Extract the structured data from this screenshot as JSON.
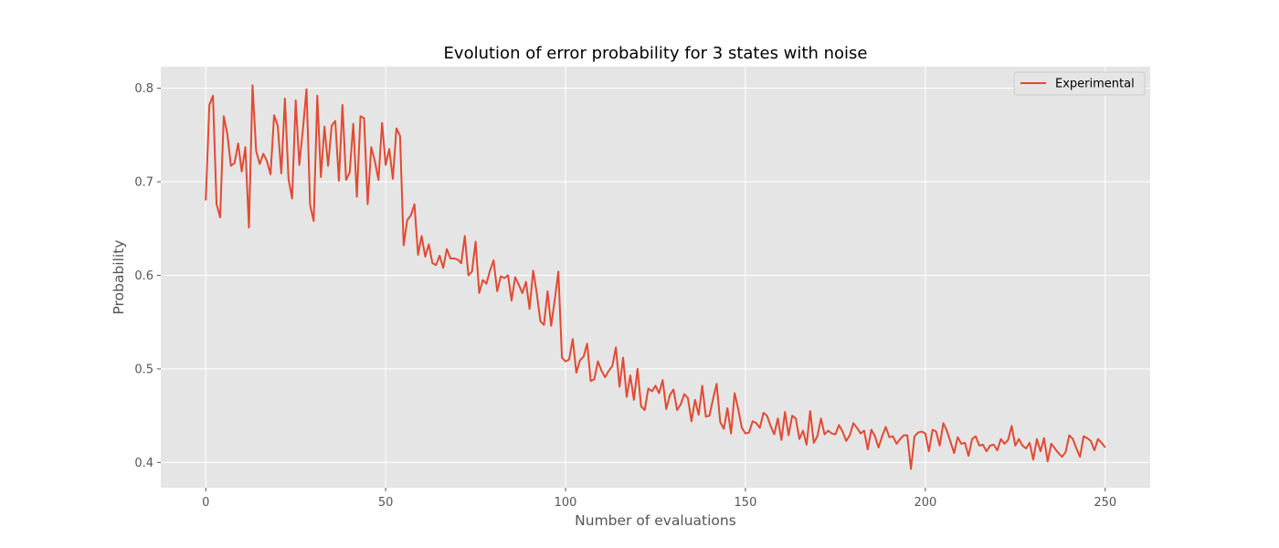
{
  "chart_data": {
    "type": "line",
    "title": "Evolution of error probability for 3 states with noise",
    "xlabel": "Number of evaluations",
    "ylabel": "Probability",
    "xlim": [
      -12.5,
      262.5
    ],
    "ylim": [
      0.373,
      0.823
    ],
    "x_ticks": [
      0,
      50,
      100,
      150,
      200,
      250
    ],
    "y_ticks": [
      0.4,
      0.5,
      0.6,
      0.7,
      0.8
    ],
    "x_tick_labels": [
      "0",
      "50",
      "100",
      "150",
      "200",
      "250"
    ],
    "y_tick_labels": [
      "0.4",
      "0.5",
      "0.6",
      "0.7",
      "0.8"
    ],
    "grid": true,
    "legend_position": "top-right",
    "colors": {
      "plot_background": "#e5e5e5",
      "grid": "#ffffff",
      "line": "#e24a33",
      "legend_border": "#cccccc"
    },
    "series": [
      {
        "name": "Experimental",
        "x_start": 0,
        "x_step": 1,
        "values": [
          0.68,
          0.782,
          0.792,
          0.676,
          0.662,
          0.77,
          0.751,
          0.717,
          0.72,
          0.741,
          0.711,
          0.737,
          0.651,
          0.803,
          0.733,
          0.719,
          0.73,
          0.722,
          0.708,
          0.771,
          0.76,
          0.709,
          0.789,
          0.703,
          0.682,
          0.787,
          0.718,
          0.756,
          0.799,
          0.675,
          0.658,
          0.792,
          0.705,
          0.759,
          0.717,
          0.76,
          0.765,
          0.701,
          0.782,
          0.702,
          0.71,
          0.762,
          0.684,
          0.77,
          0.768,
          0.676,
          0.737,
          0.722,
          0.702,
          0.763,
          0.718,
          0.735,
          0.703,
          0.757,
          0.749,
          0.632,
          0.659,
          0.664,
          0.676,
          0.622,
          0.642,
          0.62,
          0.633,
          0.613,
          0.611,
          0.621,
          0.608,
          0.628,
          0.618,
          0.618,
          0.617,
          0.613,
          0.642,
          0.6,
          0.604,
          0.636,
          0.581,
          0.595,
          0.591,
          0.605,
          0.616,
          0.583,
          0.599,
          0.597,
          0.6,
          0.573,
          0.598,
          0.59,
          0.581,
          0.593,
          0.564,
          0.605,
          0.581,
          0.551,
          0.547,
          0.583,
          0.546,
          0.574,
          0.604,
          0.512,
          0.508,
          0.51,
          0.532,
          0.496,
          0.509,
          0.513,
          0.527,
          0.487,
          0.489,
          0.508,
          0.498,
          0.491,
          0.498,
          0.503,
          0.523,
          0.481,
          0.512,
          0.47,
          0.493,
          0.467,
          0.5,
          0.46,
          0.456,
          0.479,
          0.476,
          0.482,
          0.474,
          0.488,
          0.457,
          0.472,
          0.478,
          0.456,
          0.462,
          0.473,
          0.469,
          0.444,
          0.467,
          0.451,
          0.482,
          0.449,
          0.45,
          0.468,
          0.484,
          0.443,
          0.436,
          0.458,
          0.431,
          0.474,
          0.457,
          0.437,
          0.431,
          0.432,
          0.444,
          0.442,
          0.437,
          0.453,
          0.45,
          0.439,
          0.43,
          0.447,
          0.424,
          0.454,
          0.429,
          0.45,
          0.447,
          0.425,
          0.434,
          0.419,
          0.455,
          0.421,
          0.428,
          0.447,
          0.43,
          0.434,
          0.431,
          0.43,
          0.44,
          0.433,
          0.423,
          0.429,
          0.442,
          0.437,
          0.431,
          0.434,
          0.414,
          0.435,
          0.428,
          0.416,
          0.428,
          0.438,
          0.427,
          0.428,
          0.42,
          0.425,
          0.429,
          0.429,
          0.393,
          0.428,
          0.432,
          0.433,
          0.431,
          0.412,
          0.435,
          0.433,
          0.418,
          0.442,
          0.434,
          0.422,
          0.41,
          0.427,
          0.42,
          0.421,
          0.407,
          0.425,
          0.428,
          0.418,
          0.419,
          0.412,
          0.418,
          0.419,
          0.413,
          0.425,
          0.42,
          0.424,
          0.439,
          0.418,
          0.425,
          0.418,
          0.415,
          0.421,
          0.403,
          0.425,
          0.412,
          0.426,
          0.401,
          0.42,
          0.415,
          0.41,
          0.406,
          0.411,
          0.429,
          0.425,
          0.415,
          0.406,
          0.428,
          0.426,
          0.423,
          0.413,
          0.425,
          0.421,
          0.416
        ]
      }
    ]
  }
}
